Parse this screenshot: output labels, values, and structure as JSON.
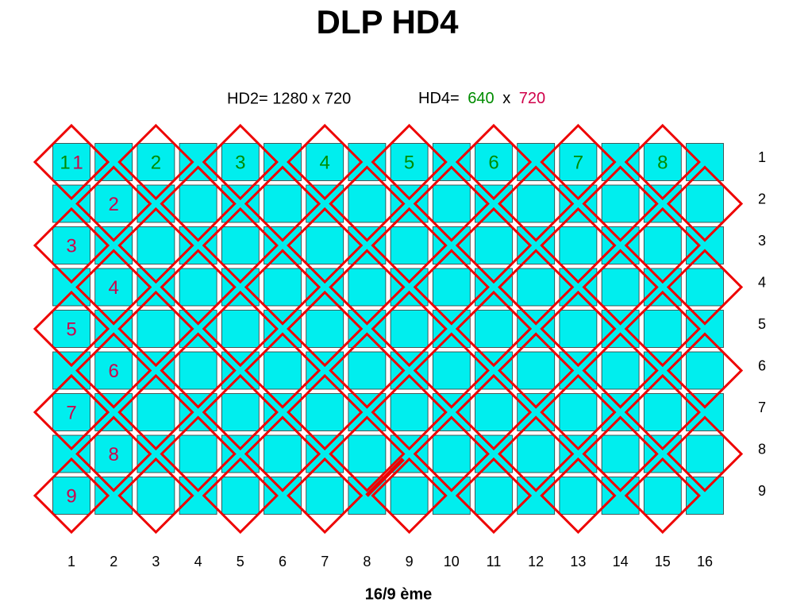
{
  "title": "DLP HD4",
  "resolution": {
    "hd2": "HD2= 1280 x 720",
    "hd4_label": "HD4=",
    "hd4_width": "640",
    "hd4_x": "x",
    "hd4_height": "720"
  },
  "columns": [
    "1",
    "2",
    "3",
    "4",
    "5",
    "6",
    "7",
    "8",
    "9",
    "10",
    "11",
    "12",
    "13",
    "14",
    "15",
    "16"
  ],
  "rows": [
    "1",
    "2",
    "3",
    "4",
    "5",
    "6",
    "7",
    "8",
    "9"
  ],
  "top_labels": [
    "1",
    "2",
    "3",
    "4",
    "5",
    "6",
    "7",
    "8"
  ],
  "left_labels": [
    "1",
    "2",
    "3",
    "4",
    "5",
    "6",
    "7",
    "8",
    "9"
  ],
  "footer": "16/9 ème"
}
